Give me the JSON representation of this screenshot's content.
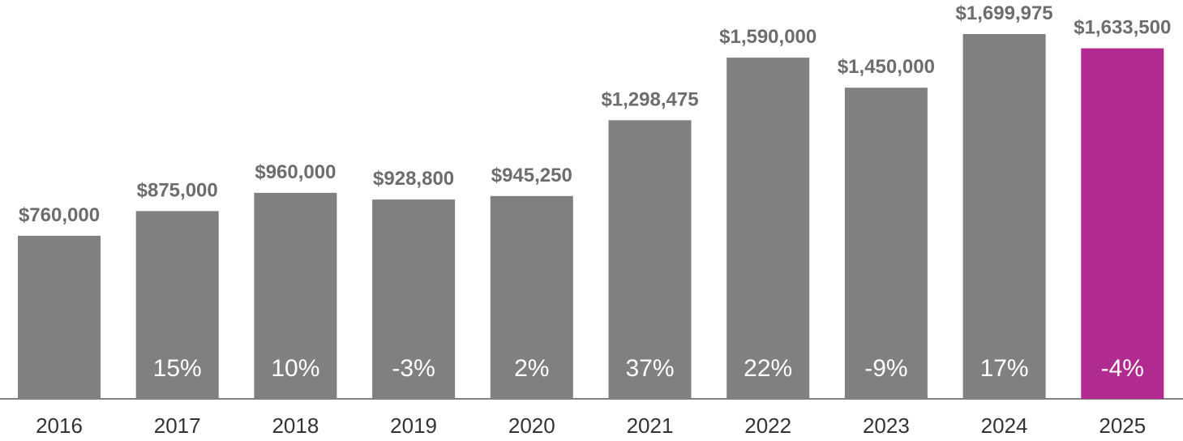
{
  "chart_data": {
    "type": "bar",
    "title": "",
    "xlabel": "",
    "ylabel": "",
    "ylim": [
      0,
      1750000
    ],
    "grid": false,
    "legend": "none",
    "categories": [
      "2016",
      "2017",
      "2018",
      "2019",
      "2020",
      "2021",
      "2022",
      "2023",
      "2024",
      "2025"
    ],
    "values": [
      760000,
      875000,
      960000,
      928800,
      945250,
      1298475,
      1590000,
      1450000,
      1699975,
      1633500
    ],
    "value_labels": [
      "$760,000",
      "$875,000",
      "$960,000",
      "$928,800",
      "$945,250",
      "$1,298,475",
      "$1,590,000",
      "$1,450,000",
      "$1,699,975",
      "$1,633,500"
    ],
    "change_labels": [
      "",
      "15%",
      "10%",
      "-3%",
      "2%",
      "37%",
      "22%",
      "-9%",
      "17%",
      "-4%"
    ],
    "colors": {
      "bar": "#808080",
      "highlight": "#b02a8f",
      "value_text": "#6d6d6d",
      "change_text": "#ffffff",
      "tick_text": "#333333",
      "axis": "#808080"
    },
    "highlight_index": 9
  }
}
